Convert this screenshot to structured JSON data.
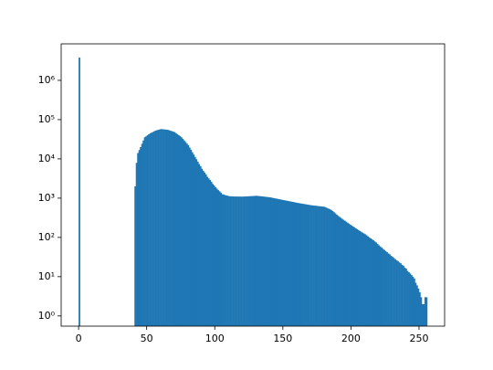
{
  "chart_data": {
    "type": "histogram",
    "color": "#1f77b4",
    "log_y": true,
    "bins": [
      0,
      1,
      2,
      3,
      4,
      5,
      6,
      7,
      8,
      9,
      10,
      11,
      12,
      13,
      14,
      15,
      16,
      17,
      18,
      19,
      20,
      21,
      22,
      23,
      24,
      25,
      26,
      27,
      28,
      29,
      30,
      31,
      32,
      33,
      34,
      35,
      36,
      37,
      38,
      39,
      40,
      41,
      42,
      43,
      44,
      45,
      46,
      47,
      48,
      49,
      50,
      51,
      52,
      53,
      54,
      55,
      56,
      57,
      58,
      59,
      60,
      61,
      62,
      63,
      64,
      65,
      66,
      67,
      68,
      69,
      70,
      71,
      72,
      73,
      74,
      75,
      76,
      77,
      78,
      79,
      80,
      81,
      82,
      83,
      84,
      85,
      86,
      87,
      88,
      89,
      90,
      91,
      92,
      93,
      94,
      95,
      96,
      97,
      98,
      99,
      100,
      101,
      102,
      103,
      104,
      105,
      106,
      107,
      108,
      109,
      110,
      111,
      112,
      113,
      114,
      115,
      116,
      117,
      118,
      119,
      120,
      121,
      122,
      123,
      124,
      125,
      126,
      127,
      128,
      129,
      130,
      131,
      132,
      133,
      134,
      135,
      136,
      137,
      138,
      139,
      140,
      141,
      142,
      143,
      144,
      145,
      146,
      147,
      148,
      149,
      150,
      151,
      152,
      153,
      154,
      155,
      156,
      157,
      158,
      159,
      160,
      161,
      162,
      163,
      164,
      165,
      166,
      167,
      168,
      169,
      170,
      171,
      172,
      173,
      174,
      175,
      176,
      177,
      178,
      179,
      180,
      181,
      182,
      183,
      184,
      185,
      186,
      187,
      188,
      189,
      190,
      191,
      192,
      193,
      194,
      195,
      196,
      197,
      198,
      199,
      200,
      201,
      202,
      203,
      204,
      205,
      206,
      207,
      208,
      209,
      210,
      211,
      212,
      213,
      214,
      215,
      216,
      217,
      218,
      219,
      220,
      221,
      222,
      223,
      224,
      225,
      226,
      227,
      228,
      229,
      230,
      231,
      232,
      233,
      234,
      235,
      236,
      237,
      238,
      239,
      240,
      241,
      242,
      243,
      244,
      245,
      246,
      247,
      248,
      249,
      250,
      251,
      252,
      253,
      254,
      255,
      256
    ],
    "counts": [
      3800000,
      0,
      0,
      0,
      0,
      0,
      0,
      0,
      0,
      0,
      0,
      0,
      0,
      0,
      0,
      0,
      0,
      0,
      0,
      0,
      0,
      0,
      0,
      0,
      0,
      0,
      0,
      0,
      0,
      0,
      0,
      0,
      0,
      0,
      0,
      0,
      0,
      0,
      0,
      0,
      0,
      2000,
      7900,
      14100,
      16800,
      20000,
      24200,
      29400,
      35500,
      37500,
      39800,
      42200,
      44700,
      46500,
      48400,
      50400,
      52500,
      53700,
      55000,
      56200,
      57500,
      57000,
      56500,
      56000,
      55500,
      55000,
      53500,
      52000,
      50700,
      49300,
      47900,
      45100,
      42500,
      40000,
      37700,
      35500,
      32400,
      29500,
      26900,
      24500,
      22400,
      19500,
      17000,
      14800,
      12900,
      11200,
      9800,
      8500,
      7400,
      6500,
      5600,
      5000,
      4500,
      4000,
      3500,
      3200,
      2900,
      2600,
      2300,
      2100,
      1900,
      1750,
      1600,
      1500,
      1380,
      1260,
      1230,
      1200,
      1170,
      1150,
      1120,
      1115,
      1110,
      1105,
      1100,
      1100,
      1100,
      1100,
      1095,
      1095,
      1095,
      1100,
      1105,
      1110,
      1115,
      1120,
      1125,
      1130,
      1135,
      1140,
      1150,
      1140,
      1130,
      1120,
      1110,
      1100,
      1090,
      1080,
      1070,
      1060,
      1050,
      1033,
      1017,
      1000,
      984,
      968,
      952,
      937,
      921,
      906,
      891,
      878,
      864,
      851,
      838,
      825,
      812,
      799,
      786,
      772,
      759,
      749,
      739,
      729,
      719,
      709,
      700,
      690,
      680,
      671,
      661,
      655,
      649,
      643,
      637,
      631,
      626,
      620,
      614,
      608,
      603,
      581,
      561,
      541,
      521,
      501,
      470,
      440,
      410,
      380,
      355,
      335,
      316,
      298,
      281,
      266,
      251,
      237,
      224,
      212,
      200,
      190,
      180,
      171,
      162,
      154,
      146,
      139,
      132,
      126,
      120,
      113,
      106,
      100,
      94,
      89,
      84,
      79,
      74,
      68,
      63,
      59,
      55,
      51,
      48,
      45,
      42,
      39,
      37,
      34,
      32,
      30,
      28,
      26,
      25,
      23,
      22,
      20,
      19,
      17,
      16,
      14,
      13,
      12,
      11,
      10,
      9,
      7,
      6,
      5,
      4,
      3,
      2,
      2,
      3,
      3
    ],
    "xlim": [
      -12.8,
      268.8
    ],
    "xticks": [
      0,
      50,
      100,
      150,
      200,
      250
    ],
    "ylim": [
      0.55,
      8500000
    ],
    "yticks": [
      {
        "value": 1,
        "label": "10⁰"
      },
      {
        "value": 10,
        "label": "10¹"
      },
      {
        "value": 100,
        "label": "10²"
      },
      {
        "value": 1000,
        "label": "10³"
      },
      {
        "value": 10000,
        "label": "10⁴"
      },
      {
        "value": 100000,
        "label": "10⁵"
      },
      {
        "value": 1000000,
        "label": "10⁶"
      }
    ]
  }
}
